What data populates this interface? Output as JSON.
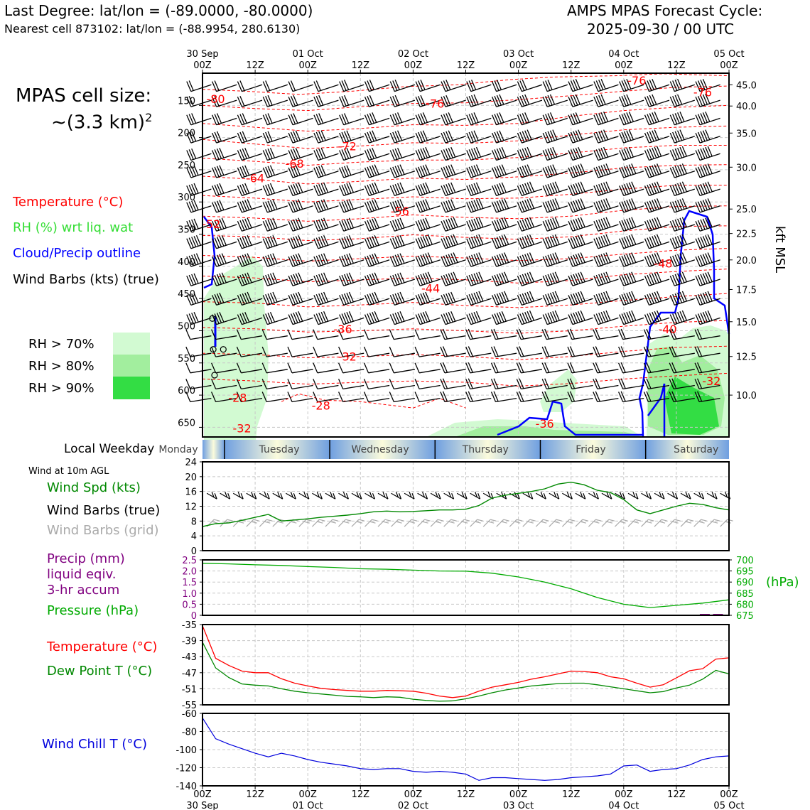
{
  "header": {
    "location_line": "Last Degree: lat/lon = (-89.0000, -80.0000)",
    "cell_line": "Nearest cell 873102: lat/lon = (-88.9954, 280.6130)",
    "cycle_title": "AMPS MPAS Forecast Cycle:",
    "cycle_time": "2025-09-30 / 00 UTC"
  },
  "cell_size": {
    "label": "MPAS cell size:",
    "value": "~(3.3 km)",
    "superscript": "2"
  },
  "legend": {
    "temperature": {
      "label": "Temperature (°C)",
      "color": "#ff0000"
    },
    "rh": {
      "label": "RH (%) wrt liq. wat",
      "color": "#33dd33"
    },
    "cloud": {
      "label": "Cloud/Precip outline",
      "color": "#0000ff"
    },
    "wind": {
      "label": "Wind Barbs (kts) (true)",
      "color": "#000000"
    },
    "rh70": {
      "label": "RH > 70%",
      "color": "#d2fad2"
    },
    "rh80": {
      "label": "RH > 80%",
      "color": "#a2ee9e"
    },
    "rh90": {
      "label": "RH > 90%",
      "color": "#33dd44"
    }
  },
  "time_axis": {
    "top_ticks": [
      {
        "line1": "30 Sep",
        "line2": "00Z"
      },
      {
        "line1": "",
        "line2": "12Z"
      },
      {
        "line1": "01 Oct",
        "line2": "00Z"
      },
      {
        "line1": "",
        "line2": "12Z"
      },
      {
        "line1": "02 Oct",
        "line2": "00Z"
      },
      {
        "line1": "",
        "line2": "12Z"
      },
      {
        "line1": "03 Oct",
        "line2": "00Z"
      },
      {
        "line1": "",
        "line2": "12Z"
      },
      {
        "line1": "04 Oct",
        "line2": "00Z"
      },
      {
        "line1": "",
        "line2": "12Z"
      },
      {
        "line1": "05 Oct",
        "line2": "00Z"
      }
    ],
    "hours": [
      0,
      12,
      24,
      36,
      48,
      60,
      72,
      84,
      96,
      108,
      120
    ]
  },
  "upper_panel": {
    "pressure_ticks": [
      "150",
      "200",
      "250",
      "300",
      "350",
      "400",
      "450",
      "500",
      "550",
      "600",
      "650"
    ],
    "pressure_values": [
      150,
      200,
      250,
      300,
      350,
      400,
      450,
      500,
      550,
      600,
      650
    ],
    "kft_ticks": [
      "45.0",
      "40.0",
      "35.0",
      "30.0",
      "25.0",
      "22.5",
      "20.0",
      "17.5",
      "15.0",
      "12.5",
      "10.0"
    ],
    "kft_pressure": [
      118,
      151,
      193,
      246,
      311,
      349,
      390,
      436,
      486,
      540,
      600
    ],
    "right_axis_label": "kft MSL",
    "temp_labels": [
      {
        "text": "-80",
        "h": 3,
        "p": 140
      },
      {
        "text": "-76",
        "h": 53,
        "p": 147
      },
      {
        "text": "-76",
        "h": 99,
        "p": 111
      },
      {
        "text": "-76",
        "h": 114,
        "p": 129
      },
      {
        "text": "-72",
        "h": 33,
        "p": 213
      },
      {
        "text": "-68",
        "h": 21,
        "p": 240
      },
      {
        "text": "-64",
        "h": 12,
        "p": 263
      },
      {
        "text": "-56",
        "h": 45,
        "p": 314
      },
      {
        "text": "-52",
        "h": 2,
        "p": 334
      },
      {
        "text": "-48",
        "h": 105,
        "p": 395
      },
      {
        "text": "-44",
        "h": 52,
        "p": 434
      },
      {
        "text": "-40",
        "h": 106,
        "p": 497
      },
      {
        "text": "-36",
        "h": 32,
        "p": 497
      },
      {
        "text": "-32",
        "h": 33,
        "p": 540
      },
      {
        "text": "-32",
        "h": 116,
        "p": 578
      },
      {
        "text": "-28",
        "h": 8,
        "p": 604
      },
      {
        "text": "-28",
        "h": 27,
        "p": 616
      },
      {
        "text": "-32",
        "h": 9,
        "p": 651
      },
      {
        "text": "-36",
        "h": 78,
        "p": 644
      }
    ]
  },
  "weekday_bar": {
    "label": "Local Weekday",
    "days": [
      "Monday",
      "Tuesday",
      "Wednesday",
      "Thursday",
      "Friday",
      "Saturday"
    ],
    "day_centers_h": [
      -5.5,
      17.5,
      40.5,
      64.5,
      88.5,
      112.5
    ],
    "dividers_h": [
      5,
      29,
      53,
      77,
      101
    ]
  },
  "wind10m": {
    "title": "Wind at 10m AGL",
    "speed_label": "Wind Spd (kts)",
    "barbs_true_label": "Wind Barbs (true)",
    "barbs_grid_label": "Wind Barbs (grid)",
    "yticks": [
      "0",
      "4",
      "8",
      "12",
      "16",
      "20",
      "24"
    ],
    "speed_color": "#008800",
    "grid_barb_color": "#aaaaaa"
  },
  "precip_panel": {
    "precip_label_1": "Precip (mm)",
    "precip_label_2": "liquid eqiv.",
    "precip_label_3": "3-hr accum",
    "pressure_label": "Pressure (hPa)",
    "left_ticks": [
      "0",
      "0.5",
      "1.0",
      "1.5",
      "2.0",
      "2.5"
    ],
    "right_ticks": [
      "675",
      "680",
      "685",
      "690",
      "695",
      "700"
    ],
    "right_unit": "(hPa)",
    "precip_color": "#800080",
    "pressure_color": "#00aa00"
  },
  "temp_panel": {
    "temp_label": "Temperature (°C)",
    "dew_label": "Dew Point T (°C)",
    "yticks": [
      "-35",
      "-39",
      "-43",
      "-47",
      "-51",
      "-55"
    ],
    "temp_color": "#ff0000",
    "dew_color": "#008800"
  },
  "chill_panel": {
    "label": "Wind Chill T (°C)",
    "yticks": [
      "-60",
      "-80",
      "-100",
      "-120",
      "-140"
    ],
    "color": "#0000dd"
  },
  "bottom_axis": {
    "labels": [
      "00Z",
      "12Z",
      "00Z",
      "12Z",
      "00Z",
      "12Z",
      "00Z",
      "12Z",
      "00Z",
      "12Z",
      "00Z"
    ],
    "dates": [
      "30 Sep",
      "",
      "01 Oct",
      "",
      "02 Oct",
      "",
      "03 Oct",
      "",
      "04 Oct",
      "",
      "05 Oct"
    ]
  },
  "chart_data": [
    {
      "type": "line",
      "title": "Wind at 10m AGL — Wind Spd (kts)",
      "ylim": [
        0,
        24
      ],
      "x_hours": [
        0,
        3,
        6,
        9,
        12,
        15,
        18,
        21,
        24,
        27,
        30,
        33,
        36,
        39,
        42,
        45,
        48,
        51,
        54,
        57,
        60,
        63,
        66,
        69,
        72,
        75,
        78,
        81,
        84,
        87,
        90,
        93,
        96,
        99,
        102,
        105,
        108,
        111,
        114,
        117,
        120
      ],
      "series": [
        {
          "name": "Wind Spd (kts)",
          "values": [
            6.5,
            7.3,
            7.5,
            8.2,
            9.0,
            9.8,
            8.0,
            8.3,
            8.6,
            9.0,
            9.3,
            9.6,
            10.0,
            10.5,
            10.7,
            10.5,
            10.6,
            10.8,
            11.0,
            11.0,
            11.2,
            12.2,
            14.2,
            15.0,
            15.5,
            16.0,
            16.7,
            18.0,
            18.5,
            17.8,
            16.3,
            15.7,
            13.8,
            11.0,
            10.0,
            11.0,
            12.0,
            12.8,
            12.5,
            11.6,
            11.0
          ]
        }
      ]
    },
    {
      "type": "line",
      "title": "Pressure (hPa)",
      "ylim": [
        675,
        700
      ],
      "x_hours": [
        0,
        6,
        12,
        18,
        24,
        30,
        36,
        42,
        48,
        54,
        60,
        66,
        72,
        78,
        84,
        90,
        96,
        102,
        108,
        114,
        120
      ],
      "series": [
        {
          "name": "Pressure (hPa)",
          "values": [
            698.5,
            698.2,
            697.8,
            697.5,
            697.0,
            696.6,
            696.0,
            695.8,
            695.4,
            695.0,
            694.9,
            694.0,
            692.3,
            690.0,
            687.0,
            683.0,
            680.0,
            678.5,
            679.5,
            680.5,
            682.0
          ]
        }
      ]
    },
    {
      "type": "line",
      "title": "Precip (mm) 3-hr accum",
      "ylim": [
        0,
        2.5
      ],
      "x_hours": [
        0,
        24,
        48,
        72,
        96,
        114,
        117,
        120
      ],
      "series": [
        {
          "name": "Precip (mm)",
          "values": [
            0,
            0,
            0,
            0,
            0,
            0.03,
            0.03,
            0
          ]
        }
      ]
    },
    {
      "type": "line",
      "title": "Temperature and Dew Point",
      "ylim": [
        -55,
        -35
      ],
      "x_hours": [
        0,
        3,
        6,
        9,
        12,
        15,
        18,
        21,
        24,
        27,
        30,
        33,
        36,
        39,
        42,
        45,
        48,
        51,
        54,
        57,
        60,
        63,
        66,
        69,
        72,
        75,
        78,
        81,
        84,
        87,
        90,
        93,
        96,
        99,
        102,
        105,
        108,
        111,
        114,
        117,
        120
      ],
      "series": [
        {
          "name": "Temperature (°C)",
          "values": [
            -35.3,
            -43.4,
            -45.2,
            -46.6,
            -47.0,
            -47.0,
            -48.5,
            -49.6,
            -50.3,
            -50.9,
            -51.2,
            -51.4,
            -51.6,
            -51.6,
            -51.4,
            -51.5,
            -51.6,
            -52.1,
            -52.8,
            -53.2,
            -52.8,
            -51.6,
            -50.6,
            -50.0,
            -49.4,
            -48.6,
            -48.0,
            -47.3,
            -46.6,
            -46.7,
            -47.0,
            -48.0,
            -48.5,
            -49.6,
            -50.6,
            -50.0,
            -48.3,
            -46.5,
            -46.0,
            -43.6,
            -43.3
          ]
        },
        {
          "name": "Dew Point T (°C)",
          "values": [
            -39.4,
            -45.8,
            -48.2,
            -49.8,
            -50.1,
            -50.3,
            -51.0,
            -51.6,
            -52.0,
            -52.3,
            -52.6,
            -52.9,
            -53.0,
            -53.2,
            -53.0,
            -53.1,
            -53.6,
            -53.9,
            -54.1,
            -54.0,
            -53.5,
            -52.8,
            -52.0,
            -51.3,
            -50.8,
            -50.3,
            -50.0,
            -49.7,
            -49.6,
            -49.6,
            -50.0,
            -50.5,
            -51.0,
            -51.5,
            -52.0,
            -51.7,
            -50.8,
            -50.1,
            -48.6,
            -46.4,
            -47.3
          ]
        }
      ]
    },
    {
      "type": "line",
      "title": "Wind Chill T (°C)",
      "ylim": [
        -140,
        -60
      ],
      "x_hours": [
        0,
        3,
        6,
        9,
        12,
        15,
        18,
        21,
        24,
        27,
        30,
        33,
        36,
        39,
        42,
        45,
        48,
        51,
        54,
        57,
        60,
        63,
        66,
        69,
        72,
        75,
        78,
        81,
        84,
        87,
        90,
        93,
        96,
        99,
        102,
        105,
        108,
        111,
        114,
        117,
        120
      ],
      "series": [
        {
          "name": "Wind Chill T (°C)",
          "values": [
            -65,
            -88,
            -94,
            -99,
            -104,
            -108,
            -104,
            -107,
            -111,
            -114,
            -116,
            -118,
            -121,
            -122,
            -121,
            -121,
            -124,
            -125,
            -124,
            -125,
            -127,
            -134,
            -131,
            -131,
            -132,
            -133,
            -134,
            -133,
            -131,
            -130,
            -129,
            -127,
            -118,
            -117,
            -124,
            -122,
            -121,
            -117,
            -111,
            -108,
            -107
          ]
        }
      ]
    }
  ]
}
